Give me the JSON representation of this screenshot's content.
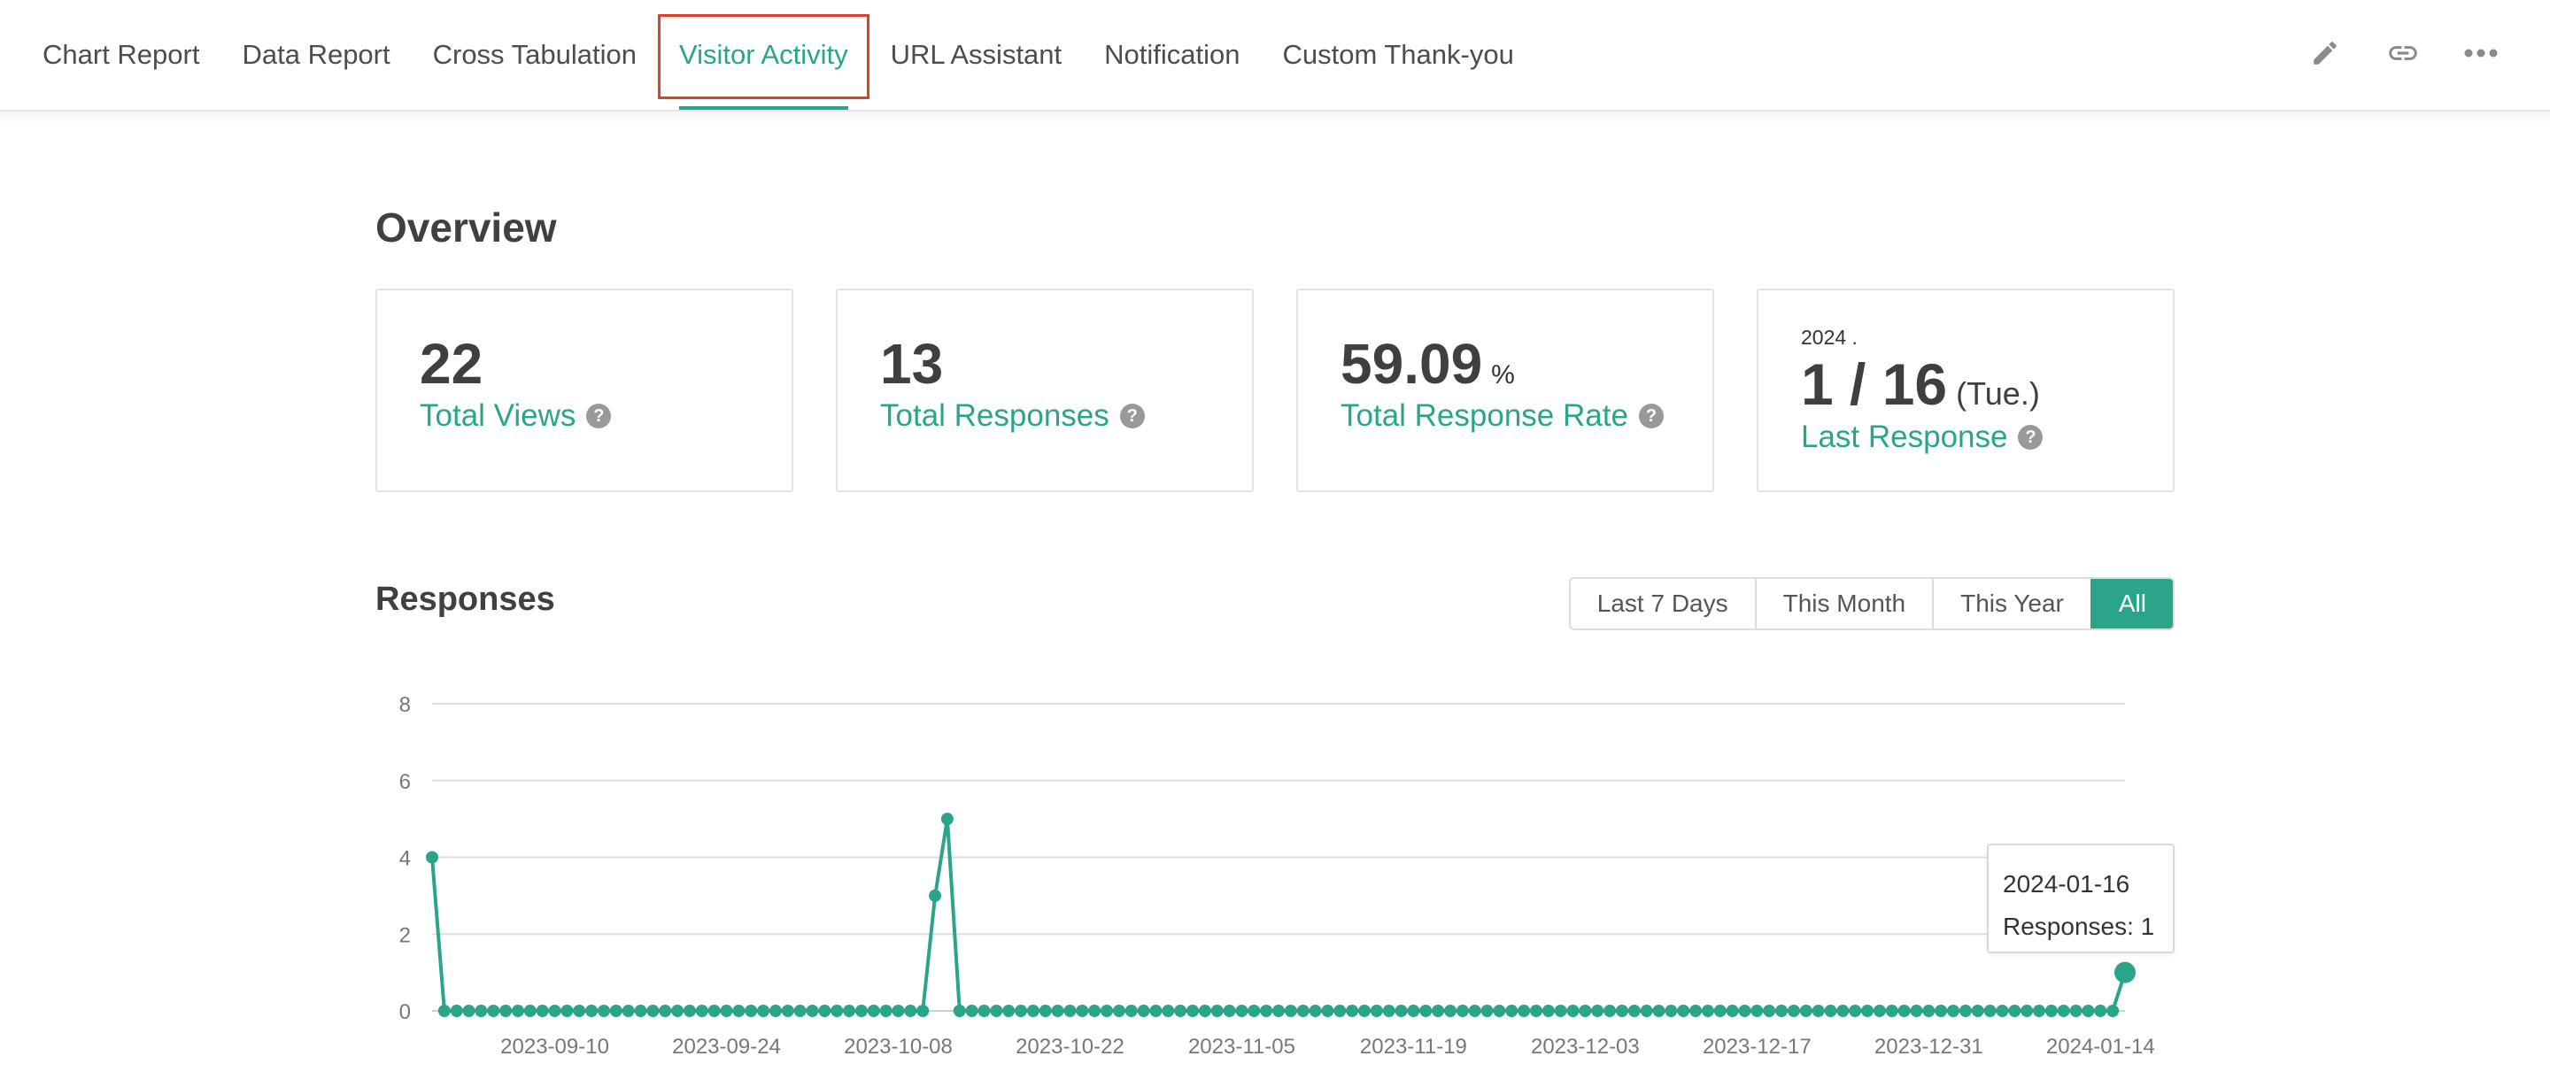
{
  "nav": {
    "tabs": [
      {
        "label": "Chart Report"
      },
      {
        "label": "Data Report"
      },
      {
        "label": "Cross Tabulation"
      },
      {
        "label": "Visitor Activity"
      },
      {
        "label": "URL Assistant"
      },
      {
        "label": "Notification"
      },
      {
        "label": "Custom Thank-you"
      }
    ],
    "active_tab": "Visitor Activity",
    "icons": [
      "pencil-icon",
      "link-icon",
      "more-icon"
    ]
  },
  "overview": {
    "title": "Overview",
    "total_views": {
      "value": "22",
      "label": "Total Views"
    },
    "total_responses": {
      "value": "13",
      "label": "Total Responses"
    },
    "response_rate": {
      "value": "59.09",
      "unit": "%",
      "label": "Total Response Rate"
    },
    "last_response": {
      "year": "2024 .",
      "date": "1 / 16",
      "weekday": "(Tue.)",
      "label": "Last Response"
    }
  },
  "responses": {
    "title": "Responses",
    "ranges": [
      {
        "label": "Last 7 Days"
      },
      {
        "label": "This Month"
      },
      {
        "label": "This Year"
      },
      {
        "label": "All"
      }
    ],
    "active_range": "All",
    "tooltip": {
      "date": "2024-01-16",
      "text": "Responses: 1"
    }
  },
  "colors": {
    "accent": "#2aa58a",
    "highlight_border": "#e0402a"
  },
  "chart_data": {
    "type": "line",
    "x_start": "2023-08-31",
    "x_end": "2024-01-16",
    "x_tick_labels": [
      "2023-09-10",
      "2023-09-24",
      "2023-10-08",
      "2023-10-22",
      "2023-11-05",
      "2023-11-19",
      "2023-12-03",
      "2023-12-17",
      "2023-12-31",
      "2024-01-14"
    ],
    "y_ticks": [
      0,
      2,
      4,
      6,
      8
    ],
    "ylim": [
      0,
      8
    ],
    "grid": true,
    "series": [
      {
        "nonzero_points": [
          {
            "x": "2023-08-31",
            "y": 4
          },
          {
            "x": "2023-10-11",
            "y": 3
          },
          {
            "x": "2023-10-12",
            "y": 5
          },
          {
            "x": "2024-01-16",
            "y": 1
          }
        ],
        "default_value": 0
      }
    ]
  }
}
